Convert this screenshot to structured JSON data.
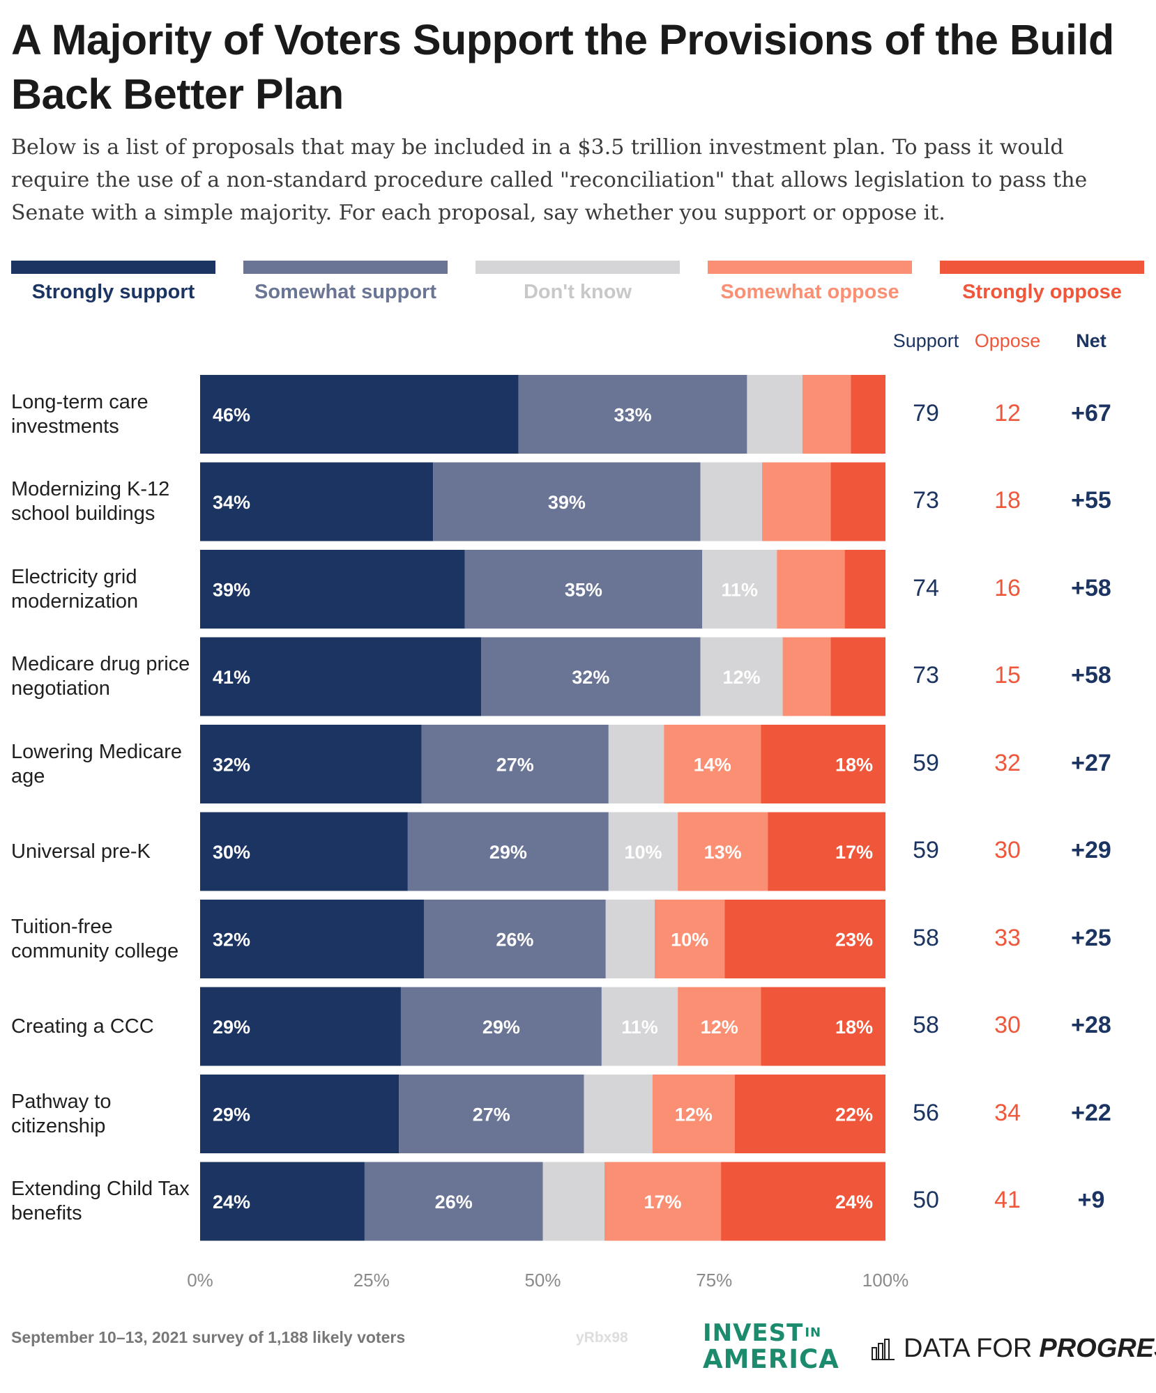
{
  "title": "A Majority of Voters Support the Provisions of the Build Back Better Plan",
  "subtitle": "Below is a list of proposals that may be included in a $3.5 trillion investment plan. To pass it would require the use of a non-standard procedure called \"reconciliation\" that allows legislation to pass the Senate with a simple majority. For each proposal, say whether you support or oppose it.",
  "legend": [
    {
      "label": "Strongly support",
      "color": "#1c3461"
    },
    {
      "label": "Somewhat support",
      "color": "#6a7596"
    },
    {
      "label": "Don't know",
      "color": "#d5d5d7"
    },
    {
      "label": "Somewhat oppose",
      "color": "#fb8f73"
    },
    {
      "label": "Strongly oppose",
      "color": "#ef563a"
    }
  ],
  "columns": {
    "support": "Support",
    "oppose": "Oppose",
    "net": "Net"
  },
  "colors": {
    "support_text": "#1c3461",
    "oppose_text": "#ef563a",
    "label_dark": "#ffffff",
    "label_on_light": "#ffffff"
  },
  "chart_data": {
    "type": "bar",
    "orientation": "horizontal",
    "stacked": true,
    "title": "A Majority of Voters Support the Provisions of the Build Back Better Plan",
    "categories": [
      "Long-term care investments",
      "Modernizing K-12 school buildings",
      "Electricity grid modernization",
      "Medicare drug price negotiation",
      "Lowering Medicare age",
      "Universal pre-K",
      "Tuition-free community college",
      "Creating a CCC",
      "Pathway to citizenship",
      "Extending Child Tax benefits"
    ],
    "series": [
      {
        "name": "Strongly support",
        "values": [
          46,
          34,
          39,
          41,
          32,
          30,
          32,
          29,
          29,
          24
        ]
      },
      {
        "name": "Somewhat support",
        "values": [
          33,
          39,
          35,
          32,
          27,
          29,
          26,
          29,
          27,
          26
        ]
      },
      {
        "name": "Don't know",
        "values": [
          8,
          9,
          11,
          12,
          8,
          10,
          7,
          11,
          10,
          9
        ]
      },
      {
        "name": "Somewhat oppose",
        "values": [
          7,
          10,
          10,
          7,
          14,
          13,
          10,
          12,
          12,
          17
        ]
      },
      {
        "name": "Strongly oppose",
        "values": [
          5,
          8,
          6,
          8,
          18,
          17,
          23,
          18,
          22,
          24
        ]
      }
    ],
    "data_labels": [
      [
        "46%",
        "33%",
        "",
        "",
        ""
      ],
      [
        "34%",
        "39%",
        "",
        "",
        ""
      ],
      [
        "39%",
        "35%",
        "11%",
        "",
        ""
      ],
      [
        "41%",
        "32%",
        "12%",
        "",
        ""
      ],
      [
        "32%",
        "27%",
        "",
        "14%",
        "18%"
      ],
      [
        "30%",
        "29%",
        "10%",
        "13%",
        "17%"
      ],
      [
        "32%",
        "26%",
        "",
        "10%",
        "23%"
      ],
      [
        "29%",
        "29%",
        "11%",
        "12%",
        "18%"
      ],
      [
        "29%",
        "27%",
        "",
        "12%",
        "22%"
      ],
      [
        "24%",
        "26%",
        "",
        "17%",
        "24%"
      ]
    ],
    "support": [
      79,
      73,
      74,
      73,
      59,
      59,
      58,
      58,
      56,
      50
    ],
    "oppose": [
      12,
      18,
      16,
      15,
      32,
      30,
      33,
      30,
      34,
      41
    ],
    "net": [
      "+67",
      "+55",
      "+58",
      "+58",
      "+27",
      "+29",
      "+25",
      "+28",
      "+22",
      "+9"
    ],
    "xticks": [
      "0%",
      "25%",
      "50%",
      "75%",
      "100%"
    ],
    "xlim": [
      0,
      100
    ]
  },
  "footer": "September 10–13, 2021 survey of 1,188 likely voters",
  "watermark": "yRbx98",
  "logo_invest": {
    "line1": "INVEST",
    "in": "IN",
    "line2": "AMERICA"
  },
  "logo_dfp": {
    "text": "DATA FOR",
    "strong": "PROGRESS"
  }
}
